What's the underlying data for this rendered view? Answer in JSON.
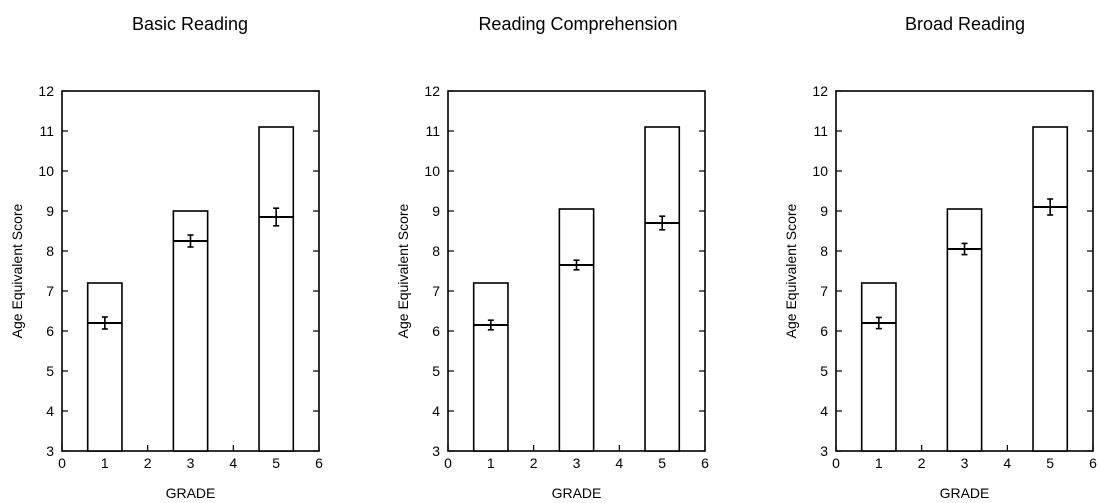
{
  "chart_data": [
    {
      "type": "bar",
      "title": "Basic Reading",
      "xlabel": "GRADE",
      "ylabel": "Age Equivalent Score",
      "xlim": [
        0,
        6
      ],
      "ylim": [
        3,
        12
      ],
      "xticks": [
        0,
        1,
        2,
        3,
        4,
        5,
        6
      ],
      "yticks": [
        3,
        4,
        5,
        6,
        7,
        8,
        9,
        10,
        11,
        12
      ],
      "grid": false,
      "x": [
        1,
        3,
        5
      ],
      "bar_tops": [
        7.2,
        9.0,
        11.1
      ],
      "means": [
        6.2,
        8.25,
        8.85
      ],
      "error": [
        0.15,
        0.15,
        0.22
      ]
    },
    {
      "type": "bar",
      "title": "Reading Comprehension",
      "xlabel": "GRADE",
      "ylabel": "Age Equivalent Score",
      "xlim": [
        0,
        6
      ],
      "ylim": [
        3,
        12
      ],
      "xticks": [
        0,
        1,
        2,
        3,
        4,
        5,
        6
      ],
      "yticks": [
        3,
        4,
        5,
        6,
        7,
        8,
        9,
        10,
        11,
        12
      ],
      "grid": false,
      "x": [
        1,
        3,
        5
      ],
      "bar_tops": [
        7.2,
        9.05,
        11.1
      ],
      "means": [
        6.15,
        7.65,
        8.7
      ],
      "error": [
        0.12,
        0.12,
        0.17
      ]
    },
    {
      "type": "bar",
      "title": "Broad Reading",
      "xlabel": "GRADE",
      "ylabel": "Age Equivalent Score",
      "xlim": [
        0,
        6
      ],
      "ylim": [
        3,
        12
      ],
      "xticks": [
        0,
        1,
        2,
        3,
        4,
        5,
        6
      ],
      "yticks": [
        3,
        4,
        5,
        6,
        7,
        8,
        9,
        10,
        11,
        12
      ],
      "grid": false,
      "x": [
        1,
        3,
        5
      ],
      "bar_tops": [
        7.2,
        9.05,
        11.1
      ],
      "means": [
        6.2,
        8.05,
        9.1
      ],
      "error": [
        0.14,
        0.14,
        0.2
      ]
    }
  ]
}
